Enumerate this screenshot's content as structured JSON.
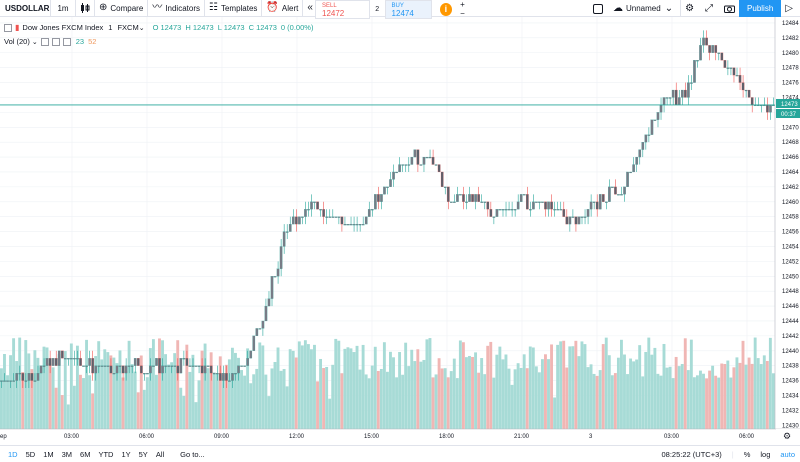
{
  "toolbar": {
    "symbol": "USDOLLAR",
    "interval": "1m",
    "compare_label": "Compare",
    "indicators_label": "Indicators",
    "templates_label": "Templates",
    "alert_label": "Alert",
    "replay_icon": "rewind-icon"
  },
  "trade": {
    "sell_label": "SELL",
    "sell_price": "12472",
    "spread": "2",
    "buy_label": "BUY",
    "buy_price": "12474",
    "info_glyph": "i",
    "plus": "+",
    "minus": "−"
  },
  "right_toolbar": {
    "layout_name": "Unnamed",
    "publish_label": "Publish"
  },
  "legend": {
    "title": "Dow Jones FXCM Index",
    "interval": "1",
    "exchange": "FXCM",
    "open": "O 12473",
    "high": "H 12473",
    "low": "L 12473",
    "close": "C 12473",
    "change": "0 (0.00%)"
  },
  "volume_legend": {
    "label": "Vol (20)",
    "value_up": "23",
    "value_down": "52",
    "color_up": "#26a69a",
    "color_down": "#ef5350"
  },
  "bottom_bar": {
    "ranges": [
      "1D",
      "5D",
      "1M",
      "3M",
      "6M",
      "YTD",
      "1Y",
      "5Y",
      "All"
    ],
    "active_range": "1D",
    "goto_label": "Go to...",
    "clock": "08:25:22 (UTC+3)",
    "percent": "%",
    "log": "log",
    "auto": "auto"
  },
  "colors": {
    "up": "#26a69a",
    "down": "#ef5350",
    "vol_up": "#a7dbd6",
    "vol_down": "#f0b6b4",
    "accent": "#2196f3",
    "grid": "#eef1f5"
  },
  "chart_data": {
    "type": "candlestick",
    "price_axis": [
      "12484",
      "12482",
      "12480",
      "12478",
      "12476",
      "12474",
      "12472",
      "12470",
      "12468",
      "12466",
      "12464",
      "12462",
      "12460",
      "12458",
      "12456",
      "12454",
      "12452",
      "12450",
      "12448",
      "12446",
      "12444",
      "12442",
      "12440",
      "12438",
      "12436",
      "12434",
      "12432",
      "12430"
    ],
    "price_range": [
      12429.5,
      12484.8
    ],
    "time_axis": [
      "ep",
      "03:00",
      "06:00",
      "09:00",
      "12:00",
      "15:00",
      "18:00",
      "21:00",
      "3",
      "03:00",
      "06:00"
    ],
    "last_price_label": "12473",
    "countdown_label": "00:37",
    "last_price": 12473,
    "close_path": [
      [
        0,
        12436
      ],
      [
        0.02,
        12437
      ],
      [
        0.04,
        12436
      ],
      [
        0.06,
        12438
      ],
      [
        0.08,
        12440
      ],
      [
        0.1,
        12439
      ],
      [
        0.12,
        12438
      ],
      [
        0.14,
        12437
      ],
      [
        0.16,
        12438
      ],
      [
        0.18,
        12438
      ],
      [
        0.2,
        12438
      ],
      [
        0.22,
        12438
      ],
      [
        0.24,
        12438
      ],
      [
        0.26,
        12438
      ],
      [
        0.28,
        12437
      ],
      [
        0.295,
        12436
      ],
      [
        0.31,
        12438
      ],
      [
        0.325,
        12441
      ],
      [
        0.34,
        12445
      ],
      [
        0.355,
        12451
      ],
      [
        0.37,
        12456
      ],
      [
        0.385,
        12458
      ],
      [
        0.4,
        12460
      ],
      [
        0.415,
        12458
      ],
      [
        0.43,
        12459
      ],
      [
        0.445,
        12457
      ],
      [
        0.46,
        12456
      ],
      [
        0.475,
        12459
      ],
      [
        0.49,
        12461
      ],
      [
        0.505,
        12463
      ],
      [
        0.52,
        12465
      ],
      [
        0.535,
        12466
      ],
      [
        0.55,
        12466
      ],
      [
        0.565,
        12465
      ],
      [
        0.58,
        12460
      ],
      [
        0.595,
        12460
      ],
      [
        0.61,
        12461
      ],
      [
        0.625,
        12459
      ],
      [
        0.64,
        12458
      ],
      [
        0.655,
        12459
      ],
      [
        0.67,
        12460
      ],
      [
        0.69,
        12460
      ],
      [
        0.71,
        12459
      ],
      [
        0.73,
        12458
      ],
      [
        0.745,
        12457
      ],
      [
        0.76,
        12459
      ],
      [
        0.775,
        12460
      ],
      [
        0.79,
        12461
      ],
      [
        0.805,
        12462
      ],
      [
        0.82,
        12465
      ],
      [
        0.835,
        12469
      ],
      [
        0.85,
        12472
      ],
      [
        0.865,
        12474
      ],
      [
        0.88,
        12474
      ],
      [
        0.895,
        12477
      ],
      [
        0.91,
        12482
      ],
      [
        0.925,
        12480
      ],
      [
        0.94,
        12478
      ],
      [
        0.955,
        12477
      ],
      [
        0.97,
        12474
      ],
      [
        0.985,
        12473
      ],
      [
        1.0,
        12473
      ]
    ]
  }
}
